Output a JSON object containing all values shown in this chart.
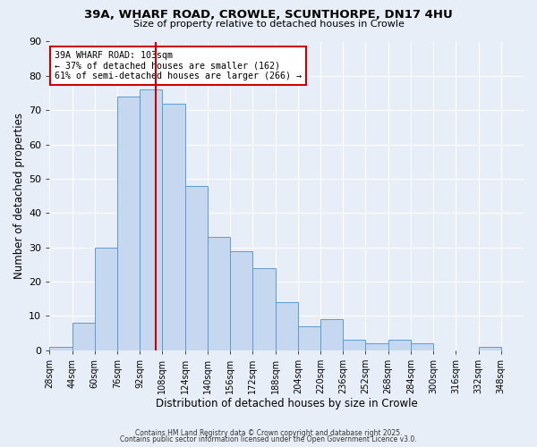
{
  "title": "39A, WHARF ROAD, CROWLE, SCUNTHORPE, DN17 4HU",
  "subtitle": "Size of property relative to detached houses in Crowle",
  "xlabel": "Distribution of detached houses by size in Crowle",
  "ylabel": "Number of detached properties",
  "bin_labels": [
    "28sqm",
    "44sqm",
    "60sqm",
    "76sqm",
    "92sqm",
    "108sqm",
    "124sqm",
    "140sqm",
    "156sqm",
    "172sqm",
    "188sqm",
    "204sqm",
    "220sqm",
    "236sqm",
    "252sqm",
    "268sqm",
    "284sqm",
    "300sqm",
    "316sqm",
    "332sqm",
    "348sqm"
  ],
  "bin_left_edges": [
    28,
    44,
    60,
    76,
    92,
    108,
    124,
    140,
    156,
    172,
    188,
    204,
    220,
    236,
    252,
    268,
    284,
    300,
    316,
    332,
    348
  ],
  "bar_heights": [
    1,
    8,
    30,
    74,
    76,
    72,
    48,
    33,
    29,
    24,
    14,
    7,
    9,
    3,
    2,
    3,
    2,
    0,
    0,
    1,
    0
  ],
  "bar_color": "#c5d8f0",
  "bar_edge_color": "#5b9bd5",
  "property_size": 103,
  "vline_color": "#cc0000",
  "annotation_text": "39A WHARF ROAD: 103sqm\n← 37% of detached houses are smaller (162)\n61% of semi-detached houses are larger (266) →",
  "annotation_box_color": "#ffffff",
  "annotation_box_edge": "#cc0000",
  "ylim": [
    0,
    90
  ],
  "yticks": [
    0,
    10,
    20,
    30,
    40,
    50,
    60,
    70,
    80,
    90
  ],
  "background_color": "#e8eef8",
  "grid_color": "#ffffff",
  "footer_line1": "Contains HM Land Registry data © Crown copyright and database right 2025.",
  "footer_line2": "Contains public sector information licensed under the Open Government Licence v3.0."
}
